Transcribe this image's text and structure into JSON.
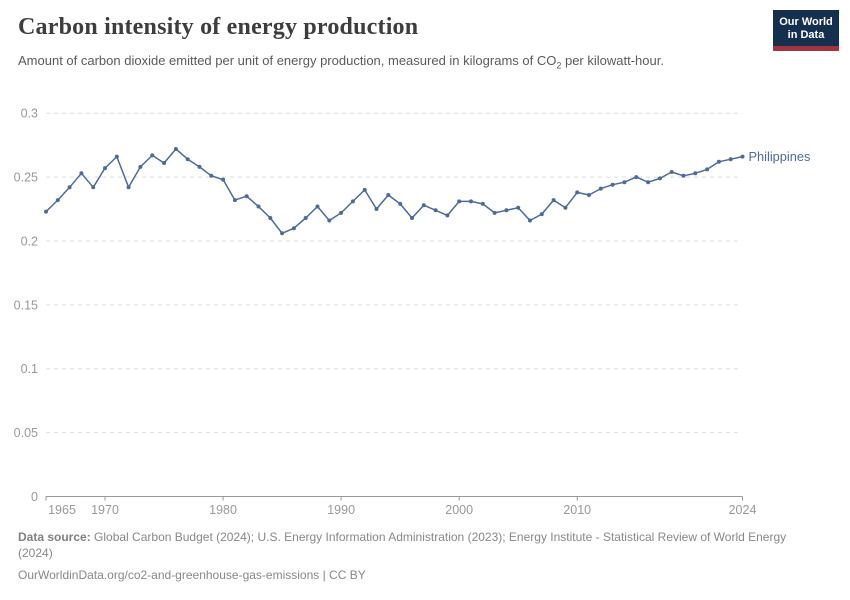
{
  "header": {
    "title": "Carbon intensity of energy production",
    "subtitle_part1": "Amount of carbon dioxide emitted per unit of energy production, measured in kilograms of CO",
    "subtitle_sub": "2",
    "subtitle_part2": " per kilowatt-hour.",
    "logo": {
      "line1": "Our World",
      "line2": "in Data"
    }
  },
  "chart_data": {
    "type": "line",
    "title": "Carbon intensity of energy production",
    "xlabel": "",
    "ylabel": "kilograms of CO2 per kilowatt-hour",
    "xlim": [
      1965,
      2024
    ],
    "ylim": [
      0,
      0.3
    ],
    "grid": true,
    "legend_position": "end-of-line",
    "yticks": [
      {
        "value": 0,
        "label": "0"
      },
      {
        "value": 0.05,
        "label": "0.05"
      },
      {
        "value": 0.1,
        "label": "0.1"
      },
      {
        "value": 0.15,
        "label": "0.15"
      },
      {
        "value": 0.2,
        "label": "0.2"
      },
      {
        "value": 0.25,
        "label": "0.25"
      },
      {
        "value": 0.3,
        "label": "0.3"
      }
    ],
    "xticks": [
      {
        "value": 1965,
        "label": "1965"
      },
      {
        "value": 1970,
        "label": "1970"
      },
      {
        "value": 1980,
        "label": "1980"
      },
      {
        "value": 1990,
        "label": "1990"
      },
      {
        "value": 2000,
        "label": "2000"
      },
      {
        "value": 2010,
        "label": "2010"
      },
      {
        "value": 2024,
        "label": "2024"
      }
    ],
    "series": [
      {
        "name": "Philippines",
        "color": "#4C6A9C",
        "x": [
          1965,
          1966,
          1967,
          1968,
          1969,
          1970,
          1971,
          1972,
          1973,
          1974,
          1975,
          1976,
          1977,
          1978,
          1979,
          1980,
          1981,
          1982,
          1983,
          1984,
          1985,
          1986,
          1987,
          1988,
          1989,
          1990,
          1991,
          1992,
          1993,
          1994,
          1995,
          1996,
          1997,
          1998,
          1999,
          2000,
          2001,
          2002,
          2003,
          2004,
          2005,
          2006,
          2007,
          2008,
          2009,
          2010,
          2011,
          2012,
          2013,
          2014,
          2015,
          2016,
          2017,
          2018,
          2019,
          2020,
          2021,
          2022,
          2023,
          2024
        ],
        "values": [
          0.223,
          0.232,
          0.242,
          0.253,
          0.242,
          0.257,
          0.266,
          0.242,
          0.258,
          0.267,
          0.261,
          0.272,
          0.264,
          0.258,
          0.251,
          0.248,
          0.232,
          0.235,
          0.227,
          0.218,
          0.206,
          0.21,
          0.218,
          0.227,
          0.216,
          0.222,
          0.231,
          0.24,
          0.225,
          0.236,
          0.229,
          0.218,
          0.228,
          0.224,
          0.22,
          0.231,
          0.231,
          0.229,
          0.222,
          0.224,
          0.226,
          0.216,
          0.221,
          0.232,
          0.226,
          0.238,
          0.236,
          0.241,
          0.244,
          0.246,
          0.25,
          0.246,
          0.249,
          0.254,
          0.251,
          0.253,
          0.256,
          0.262,
          0.264,
          0.266
        ]
      }
    ],
    "style": {
      "grid_color": "#dddddd",
      "axis_color": "#999999",
      "tick_label_color": "#999999"
    }
  },
  "footer": {
    "source_label": "Data source:",
    "source_text": " Global Carbon Budget (2024); U.S. Energy Information Administration (2023); Energy Institute - Statistical Review of World Energy (2024)",
    "link_line": "OurWorldinData.org/co2-and-greenhouse-gas-emissions | CC BY"
  }
}
